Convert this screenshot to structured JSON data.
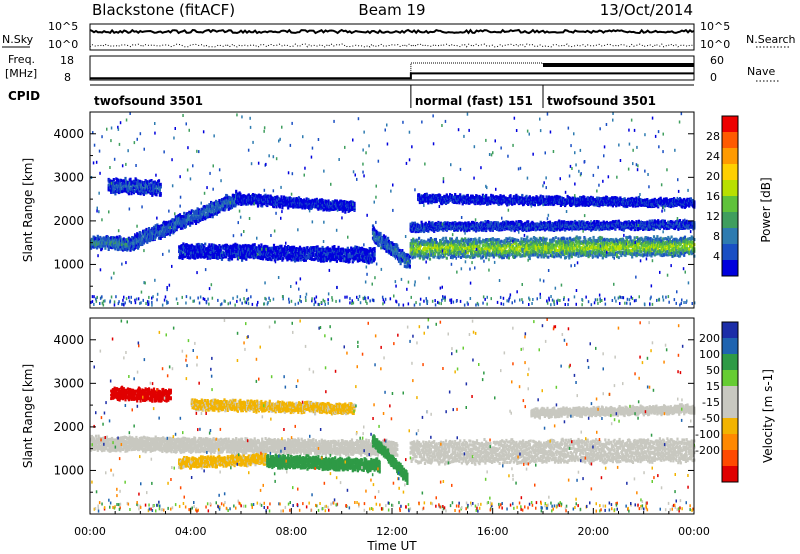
{
  "header": {
    "station": "Blackstone (fitACF)",
    "beam": "Beam 19",
    "date": "13/Oct/2014"
  },
  "noise_panel": {
    "left_label": "N.Sky",
    "right_label": "N.Search",
    "left_ticks": [
      "10^5",
      "10^0"
    ],
    "right_ticks": [
      "10^5",
      "10^0"
    ]
  },
  "freq_panel": {
    "left_label_1": "Freq.",
    "left_label_2": "[MHz]",
    "left_ticks": [
      "18",
      "8"
    ],
    "right_label": "Nave",
    "right_ticks": [
      "60",
      "0"
    ]
  },
  "cpid_panel": {
    "label": "CPID",
    "modes": [
      {
        "name": "twofsound 3501",
        "start": 0,
        "end": 12.75
      },
      {
        "name": "normal (fast) 151",
        "start": 12.75,
        "end": 18
      },
      {
        "name": "twofsound 3501",
        "start": 18,
        "end": 24
      }
    ]
  },
  "colors": {
    "power_scale": [
      "#0000dd",
      "#1a4fc4",
      "#2e7bb0",
      "#3f9e5e",
      "#5fc23a",
      "#b8e000",
      "#ffd000",
      "#ff9a00",
      "#ff5a00",
      "#ee0000"
    ],
    "velocity_scale": [
      "#1c2ea8",
      "#1f64b0",
      "#2f9a46",
      "#66cc33",
      "#c8c8c0",
      "#c8c8c0",
      "#f2b300",
      "#ff8800",
      "#ff4a00",
      "#e00000"
    ]
  },
  "chart_data": [
    {
      "type": "heatmap",
      "name": "power",
      "ylabel": "Slant Range [km]",
      "ylim": [
        0,
        4500
      ],
      "yticks": [
        1000,
        2000,
        3000,
        4000
      ],
      "xlim": [
        0,
        24
      ],
      "colorbar_label": "Power [dB]",
      "colorbar_range": [
        0,
        32
      ],
      "colorbar_ticks": [
        4,
        8,
        12,
        16,
        20,
        24,
        28
      ],
      "echo_bands": [
        {
          "start": 0,
          "end": 1.5,
          "center_start": 1500,
          "center_end": 1450,
          "width": 250,
          "level": 10
        },
        {
          "start": 1.5,
          "end": 5.8,
          "center_start": 1450,
          "center_end": 2500,
          "width": 300,
          "level": 7
        },
        {
          "start": 5.8,
          "end": 10.5,
          "center_start": 2500,
          "center_end": 2300,
          "width": 200,
          "level": 3
        },
        {
          "start": 3.5,
          "end": 11.3,
          "center_start": 1300,
          "center_end": 1200,
          "width": 300,
          "level": 3
        },
        {
          "start": 0.7,
          "end": 2.8,
          "center_start": 2800,
          "center_end": 2750,
          "width": 300,
          "level": 6
        },
        {
          "start": 11.2,
          "end": 12.7,
          "center_start": 1700,
          "center_end": 1000,
          "width": 300,
          "level": 8
        },
        {
          "start": 12.7,
          "end": 24,
          "center_start": 1350,
          "center_end": 1400,
          "width": 420,
          "level": 18
        },
        {
          "start": 12.7,
          "end": 24,
          "center_start": 1850,
          "center_end": 1900,
          "width": 150,
          "level": 5
        },
        {
          "start": 13,
          "end": 24,
          "center_start": 2500,
          "center_end": 2400,
          "width": 150,
          "level": 3
        }
      ]
    },
    {
      "type": "heatmap",
      "name": "velocity",
      "xlabel": "Time UT",
      "ylabel": "Slant Range [km]",
      "ylim": [
        0,
        4500
      ],
      "yticks": [
        1000,
        2000,
        3000,
        4000
      ],
      "xlim": [
        0,
        24
      ],
      "xtick_labels": [
        "00:00",
        "04:00",
        "08:00",
        "12:00",
        "16:00",
        "20:00",
        "00:00"
      ],
      "colorbar_label": "Velocity [m s-1]",
      "colorbar_ticks": [
        200,
        100,
        50,
        15,
        -15,
        -50,
        -100,
        -200
      ],
      "echo_bands": [
        {
          "start": 0.8,
          "end": 3.2,
          "center_start": 2750,
          "center_end": 2700,
          "width": 250,
          "value": -220
        },
        {
          "start": 0,
          "end": 12.2,
          "center_start": 1600,
          "center_end": 1500,
          "width": 300,
          "value": 0
        },
        {
          "start": 3.5,
          "end": 7,
          "center_start": 1150,
          "center_end": 1250,
          "width": 200,
          "value": -60
        },
        {
          "start": 7,
          "end": 11.5,
          "center_start": 1200,
          "center_end": 1100,
          "width": 250,
          "value": 70
        },
        {
          "start": 4,
          "end": 10.5,
          "center_start": 2500,
          "center_end": 2400,
          "width": 200,
          "value": -60
        },
        {
          "start": 11.2,
          "end": 12.6,
          "center_start": 1700,
          "center_end": 800,
          "width": 250,
          "value": 70
        },
        {
          "start": 12.7,
          "end": 24,
          "center_start": 1400,
          "center_end": 1450,
          "width": 500,
          "value": 0
        },
        {
          "start": 17.5,
          "end": 24,
          "center_start": 2300,
          "center_end": 2400,
          "width": 150,
          "value": 0
        }
      ]
    }
  ]
}
